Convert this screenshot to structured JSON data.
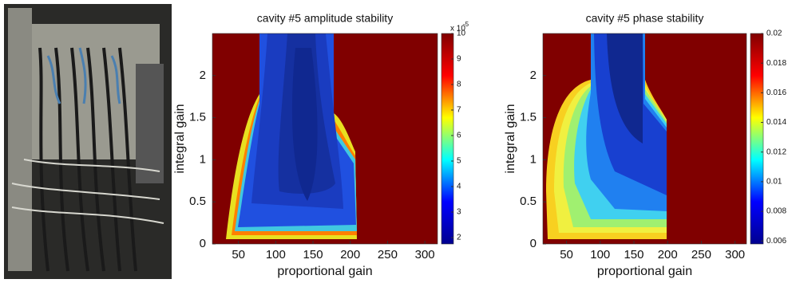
{
  "chart_data": [
    {
      "type": "contour",
      "title": "cavity #5 amplitude stability",
      "xlabel": "proportional gain",
      "ylabel": "integral gain",
      "xlim": [
        15,
        317
      ],
      "xticks": [
        50,
        100,
        150,
        200,
        250,
        300
      ],
      "ylim": [
        0,
        2.5
      ],
      "yticks": [
        0,
        0.5,
        1,
        1.5,
        2
      ],
      "colormap": "jet",
      "clim": [
        1.75e-05,
        0.0001
      ],
      "colorbar_exponent_base": "x 10",
      "colorbar_exponent": "-5",
      "cticks": [
        {
          "value": 2e-05,
          "label": "2"
        },
        {
          "value": 3e-05,
          "label": "3"
        },
        {
          "value": 4e-05,
          "label": "4"
        },
        {
          "value": 5e-05,
          "label": "5"
        },
        {
          "value": 6e-05,
          "label": "6"
        },
        {
          "value": 7e-05,
          "label": "7"
        },
        {
          "value": 8e-05,
          "label": "8"
        },
        {
          "value": 9e-05,
          "label": "9"
        },
        {
          "value": 0.0001,
          "label": "10"
        }
      ]
    },
    {
      "type": "contour",
      "title": "cavity #5 phase stability",
      "xlabel": "proportional gain",
      "ylabel": "integral gain",
      "xlim": [
        15,
        317
      ],
      "xticks": [
        50,
        100,
        150,
        200,
        250,
        300
      ],
      "ylim": [
        0,
        2.5
      ],
      "yticks": [
        0,
        0.5,
        1,
        1.5,
        2
      ],
      "colormap": "jet",
      "clim": [
        0.0058,
        0.02
      ],
      "cticks": [
        0.006,
        0.008,
        0.01,
        0.012,
        0.014,
        0.016,
        0.018,
        0.02
      ]
    }
  ]
}
